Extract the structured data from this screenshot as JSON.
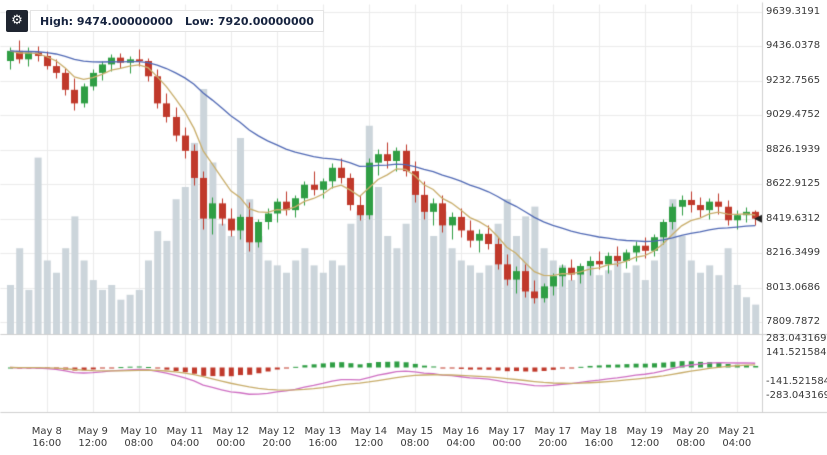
{
  "header": {
    "high_label": "High: 9474.00000000",
    "low_label": "Low: 7920.00000000",
    "gear_icon": "⚙"
  },
  "colors": {
    "up": "#2f9e44",
    "down": "#c0392b",
    "volume": "#ccd5db",
    "ma_fast": "#c9ae6b",
    "ma_slow": "#5069b5",
    "macd_line": "#cf6fc3",
    "macd_signal": "#c8ad6a",
    "grid": "#ebebeb",
    "separator": "#cfcfcf",
    "axis_text": "#3a3a3a",
    "marker": "#222222"
  },
  "chart_data": {
    "type": "candlestick",
    "title": "",
    "high": 9474.0,
    "low": 7920.0,
    "last_price": 8419.6312,
    "interval": "4h",
    "price_axis": {
      "labels": [
        "9639.3191",
        "9436.0378",
        "9232.7565",
        "9029.4752",
        "8826.1939",
        "8622.9125",
        "8419.6312",
        "8216.3499",
        "8013.0686",
        "7809.7872"
      ],
      "ylim": [
        7733,
        9710
      ]
    },
    "indicator_axis": {
      "labels": [
        "283.043169",
        "141.5215845",
        "-141.5215845",
        "-283.043169"
      ],
      "ylim": [
        -437,
        310
      ]
    },
    "time_axis": {
      "labels": [
        {
          "date": "May 8",
          "time": "16:00",
          "index": 4
        },
        {
          "date": "May 9",
          "time": "12:00",
          "index": 9
        },
        {
          "date": "May 10",
          "time": "08:00",
          "index": 14
        },
        {
          "date": "May 11",
          "time": "04:00",
          "index": 19
        },
        {
          "date": "May 12",
          "time": "00:00",
          "index": 24
        },
        {
          "date": "May 12",
          "time": "20:00",
          "index": 29
        },
        {
          "date": "May 13",
          "time": "16:00",
          "index": 34
        },
        {
          "date": "May 14",
          "time": "12:00",
          "index": 39
        },
        {
          "date": "May 15",
          "time": "08:00",
          "index": 44
        },
        {
          "date": "May 16",
          "time": "04:00",
          "index": 49
        },
        {
          "date": "May 17",
          "time": "00:00",
          "index": 54
        },
        {
          "date": "May 17",
          "time": "20:00",
          "index": 59
        },
        {
          "date": "May 18",
          "time": "16:00",
          "index": 64
        },
        {
          "date": "May 19",
          "time": "12:00",
          "index": 69
        },
        {
          "date": "May 20",
          "time": "08:00",
          "index": 74
        },
        {
          "date": "May 21",
          "time": "04:00",
          "index": 79
        }
      ]
    },
    "overlays": [
      {
        "name": "ema-fast",
        "period": 7,
        "color_key": "ma_fast"
      },
      {
        "name": "ema-slow",
        "period": 30,
        "color_key": "ma_slow"
      }
    ],
    "indicator": {
      "type": "macd",
      "fast": 12,
      "slow": 26,
      "signal": 9
    },
    "ohlc": [
      [
        9350,
        9430,
        9300,
        9410
      ],
      [
        9410,
        9474,
        9340,
        9360
      ],
      [
        9360,
        9430,
        9320,
        9400
      ],
      [
        9400,
        9440,
        9350,
        9380
      ],
      [
        9380,
        9410,
        9300,
        9320
      ],
      [
        9320,
        9360,
        9250,
        9280
      ],
      [
        9280,
        9310,
        9150,
        9180
      ],
      [
        9180,
        9250,
        9060,
        9100
      ],
      [
        9100,
        9220,
        9080,
        9200
      ],
      [
        9200,
        9300,
        9180,
        9280
      ],
      [
        9280,
        9350,
        9240,
        9330
      ],
      [
        9330,
        9390,
        9290,
        9370
      ],
      [
        9370,
        9400,
        9310,
        9340
      ],
      [
        9340,
        9380,
        9280,
        9360
      ],
      [
        9360,
        9420,
        9320,
        9350
      ],
      [
        9350,
        9370,
        9230,
        9260
      ],
      [
        9260,
        9300,
        9070,
        9100
      ],
      [
        9100,
        9160,
        8990,
        9020
      ],
      [
        9020,
        9080,
        8880,
        8910
      ],
      [
        8910,
        8960,
        8780,
        8820
      ],
      [
        8820,
        8860,
        8620,
        8660
      ],
      [
        8660,
        8700,
        8360,
        8420
      ],
      [
        8420,
        8550,
        8330,
        8510
      ],
      [
        8510,
        8540,
        8380,
        8420
      ],
      [
        8420,
        8480,
        8320,
        8350
      ],
      [
        8350,
        8450,
        8300,
        8430
      ],
      [
        8430,
        8520,
        8230,
        8280
      ],
      [
        8280,
        8420,
        8250,
        8400
      ],
      [
        8400,
        8480,
        8360,
        8450
      ],
      [
        8450,
        8540,
        8400,
        8520
      ],
      [
        8520,
        8580,
        8440,
        8470
      ],
      [
        8470,
        8560,
        8430,
        8540
      ],
      [
        8540,
        8640,
        8500,
        8620
      ],
      [
        8620,
        8700,
        8560,
        8590
      ],
      [
        8590,
        8660,
        8540,
        8640
      ],
      [
        8640,
        8750,
        8600,
        8720
      ],
      [
        8720,
        8780,
        8630,
        8660
      ],
      [
        8660,
        8690,
        8470,
        8500
      ],
      [
        8500,
        8560,
        8410,
        8440
      ],
      [
        8440,
        8780,
        8420,
        8750
      ],
      [
        8750,
        8830,
        8680,
        8800
      ],
      [
        8800,
        8870,
        8720,
        8760
      ],
      [
        8760,
        8840,
        8700,
        8820
      ],
      [
        8820,
        8860,
        8670,
        8700
      ],
      [
        8700,
        8760,
        8520,
        8560
      ],
      [
        8560,
        8640,
        8420,
        8460
      ],
      [
        8460,
        8540,
        8380,
        8510
      ],
      [
        8510,
        8560,
        8340,
        8380
      ],
      [
        8380,
        8460,
        8300,
        8430
      ],
      [
        8430,
        8480,
        8310,
        8350
      ],
      [
        8350,
        8410,
        8250,
        8290
      ],
      [
        8290,
        8360,
        8220,
        8330
      ],
      [
        8330,
        8380,
        8240,
        8270
      ],
      [
        8270,
        8310,
        8120,
        8150
      ],
      [
        8150,
        8210,
        8030,
        8060
      ],
      [
        8060,
        8140,
        7980,
        8110
      ],
      [
        8110,
        8150,
        7960,
        7990
      ],
      [
        7990,
        8060,
        7920,
        7950
      ],
      [
        7950,
        8040,
        7930,
        8020
      ],
      [
        8020,
        8100,
        7970,
        8080
      ],
      [
        8080,
        8150,
        8020,
        8130
      ],
      [
        8130,
        8180,
        8060,
        8090
      ],
      [
        8090,
        8160,
        8040,
        8140
      ],
      [
        8140,
        8200,
        8090,
        8170
      ],
      [
        8170,
        8230,
        8120,
        8150
      ],
      [
        8150,
        8220,
        8100,
        8200
      ],
      [
        8200,
        8260,
        8140,
        8170
      ],
      [
        8170,
        8240,
        8130,
        8220
      ],
      [
        8220,
        8290,
        8170,
        8260
      ],
      [
        8260,
        8310,
        8190,
        8230
      ],
      [
        8230,
        8330,
        8200,
        8310
      ],
      [
        8310,
        8420,
        8270,
        8400
      ],
      [
        8400,
        8510,
        8360,
        8490
      ],
      [
        8490,
        8560,
        8440,
        8530
      ],
      [
        8530,
        8580,
        8460,
        8500
      ],
      [
        8500,
        8550,
        8430,
        8470
      ],
      [
        8470,
        8540,
        8420,
        8520
      ],
      [
        8520,
        8570,
        8450,
        8490
      ],
      [
        8490,
        8530,
        8380,
        8410
      ],
      [
        8410,
        8470,
        8360,
        8440
      ],
      [
        8440,
        8490,
        8400,
        8460
      ],
      [
        8460,
        8470,
        8380,
        8419.6312
      ]
    ],
    "volume": [
      20,
      35,
      18,
      72,
      30,
      25,
      35,
      48,
      30,
      22,
      18,
      20,
      14,
      16,
      18,
      30,
      42,
      38,
      55,
      60,
      78,
      100,
      70,
      45,
      40,
      80,
      55,
      40,
      30,
      28,
      25,
      30,
      35,
      28,
      25,
      30,
      28,
      45,
      50,
      85,
      60,
      40,
      35,
      45,
      65,
      55,
      40,
      50,
      35,
      30,
      28,
      25,
      28,
      45,
      55,
      40,
      48,
      52,
      35,
      30,
      28,
      22,
      25,
      28,
      24,
      26,
      30,
      25,
      28,
      22,
      30,
      45,
      55,
      40,
      30,
      25,
      28,
      24,
      35,
      20,
      15,
      12
    ]
  }
}
